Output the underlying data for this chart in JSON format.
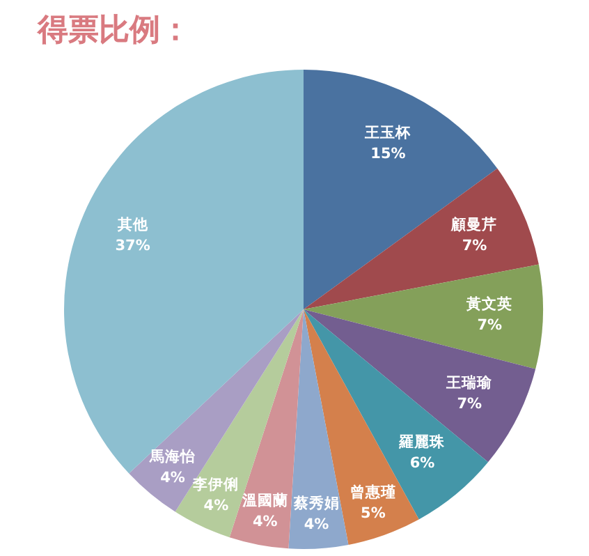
{
  "chart_data": {
    "type": "pie",
    "title": "得票比例：",
    "categories": [
      "王玉杯",
      "顧曼芹",
      "黃文英",
      "王瑞瑜",
      "羅麗珠",
      "曾惠瑾",
      "蔡秀娟",
      "溫國蘭",
      "李伊俐",
      "馬海怡",
      "其他"
    ],
    "values": [
      15,
      7,
      7,
      7,
      6,
      5,
      4,
      4,
      4,
      4,
      37
    ],
    "colors": [
      "#4a72a0",
      "#a04a4d",
      "#84a05a",
      "#735e90",
      "#4496a8",
      "#d4804c",
      "#8ea8cc",
      "#d19296",
      "#b5cc9c",
      "#a99ec4",
      "#8dbfd0"
    ],
    "value_labels": [
      "15%",
      "7%",
      "7%",
      "7%",
      "6%",
      "5%",
      "4%",
      "4%",
      "4%",
      "4%",
      "37%"
    ],
    "legend": false
  }
}
